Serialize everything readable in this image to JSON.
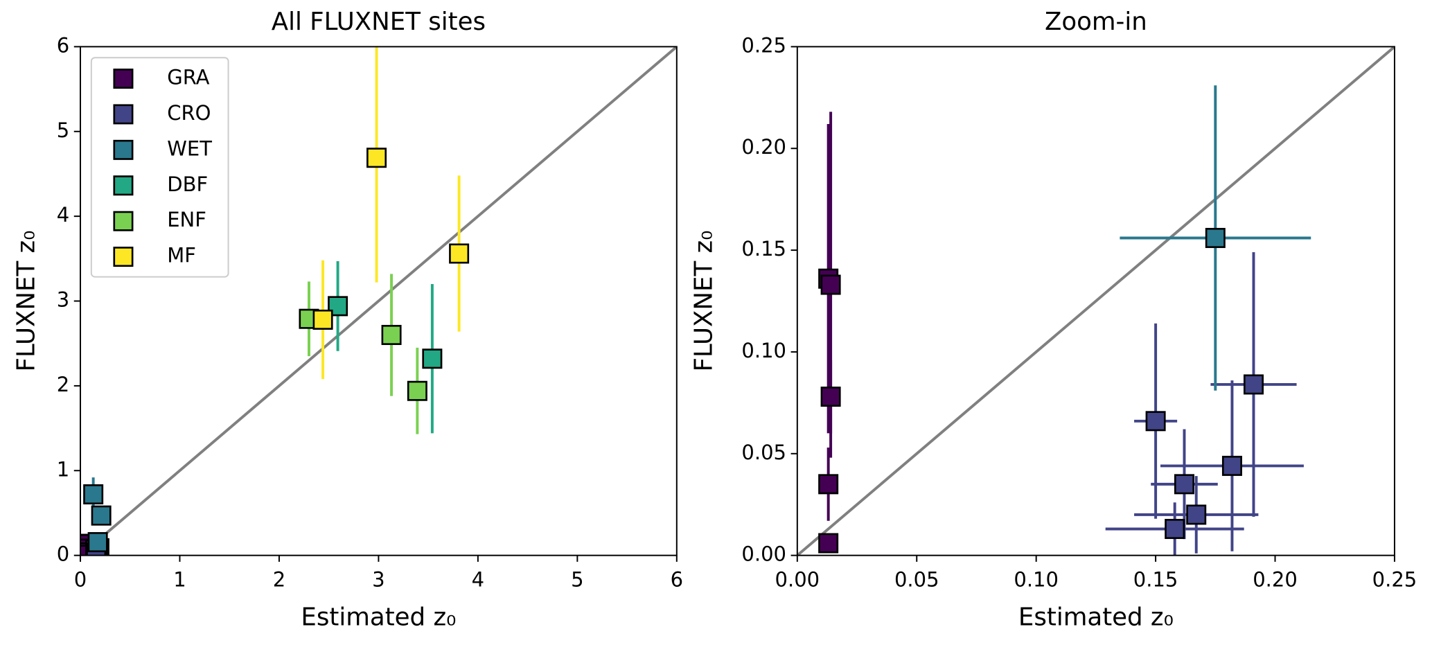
{
  "chart_data": [
    {
      "type": "scatter",
      "title": "All FLUXNET sites",
      "xlabel": "Estimated z₀",
      "ylabel": "FLUXNET z₀",
      "xlim": [
        0,
        6
      ],
      "ylim": [
        0,
        6
      ],
      "xticks": [
        0,
        1,
        2,
        3,
        4,
        5,
        6
      ],
      "yticks": [
        0,
        1,
        2,
        3,
        4,
        5,
        6
      ],
      "legend": "upper left",
      "reference_line": "1:1",
      "reference_color": "#808080",
      "series": [
        {
          "name": "GRA",
          "color": "#440154",
          "x": [
            0.013,
            0.014,
            0.014,
            0.013,
            0.013
          ],
          "values": [
            0.136,
            0.133,
            0.078,
            0.035,
            0.006
          ],
          "yerr": [
            0.076,
            0.085,
            0.018,
            0.018,
            0.004
          ]
        },
        {
          "name": "CRO",
          "color": "#414487",
          "x": [
            0.15,
            0.191,
            0.182,
            0.162,
            0.167,
            0.158
          ],
          "values": [
            0.066,
            0.084,
            0.044,
            0.035,
            0.02,
            0.013
          ],
          "yerr": [
            0.048,
            0.065,
            0.042,
            0.027,
            0.019,
            0.013
          ]
        },
        {
          "name": "WET",
          "color": "#2a788e",
          "x": [
            0.13,
            0.21,
            0.175
          ],
          "values": [
            0.72,
            0.47,
            0.156
          ],
          "yerr": [
            0.2,
            0.08,
            0.075
          ]
        },
        {
          "name": "DBF",
          "color": "#22a884",
          "x": [
            2.59,
            3.54
          ],
          "values": [
            2.94,
            2.32
          ],
          "yerr": [
            0.53,
            0.88
          ]
        },
        {
          "name": "ENF",
          "color": "#7ad151",
          "x": [
            2.3,
            3.13,
            3.39
          ],
          "values": [
            2.79,
            2.6,
            1.94
          ],
          "yerr": [
            0.44,
            0.72,
            0.51
          ]
        },
        {
          "name": "MF",
          "color": "#fde725",
          "x": [
            2.98,
            3.81,
            2.44
          ],
          "values": [
            4.69,
            3.56,
            2.78
          ],
          "yerr": [
            1.47,
            0.92,
            0.7
          ]
        }
      ]
    },
    {
      "type": "scatter",
      "title": "Zoom-in",
      "xlabel": "Estimated z₀",
      "ylabel": "FLUXNET z₀",
      "xlim": [
        0,
        0.25
      ],
      "ylim": [
        0,
        0.25
      ],
      "xticks": [
        {
          "value": 0,
          "label": "0.00"
        },
        0.05,
        {
          "value": 0.1,
          "label": "0.10"
        },
        0.15,
        {
          "value": 0.2,
          "label": "0.20"
        },
        0.25
      ],
      "yticks": [
        {
          "value": 0,
          "label": "0.00"
        },
        0.05,
        {
          "value": 0.1,
          "label": "0.10"
        },
        0.15,
        {
          "value": 0.2,
          "label": "0.20"
        },
        0.25
      ],
      "reference_line": "1:1",
      "reference_color": "#808080",
      "series": [
        {
          "color": "#440154",
          "x": [
            0.013,
            0.014,
            0.014,
            0.013,
            0.013
          ],
          "values": [
            0.136,
            0.133,
            0.078,
            0.035,
            0.006
          ],
          "yerr": [
            0.076,
            0.085,
            0.018,
            0.018,
            0.004
          ]
        },
        {
          "color": "#414487",
          "x": [
            0.15,
            0.191,
            0.182,
            0.162,
            0.167,
            0.158
          ],
          "values": [
            0.066,
            0.084,
            0.044,
            0.035,
            0.02,
            0.013
          ],
          "yerr": [
            0.048,
            0.065,
            0.042,
            0.027,
            0.019,
            0.013
          ],
          "xerr": [
            0.009,
            0.018,
            0.03,
            0.014,
            0.026,
            0.029
          ]
        },
        {
          "color": "#2a788e",
          "x": [
            0.175
          ],
          "values": [
            0.156
          ],
          "yerr": [
            0.075
          ],
          "xerr": [
            0.04
          ]
        }
      ]
    }
  ]
}
